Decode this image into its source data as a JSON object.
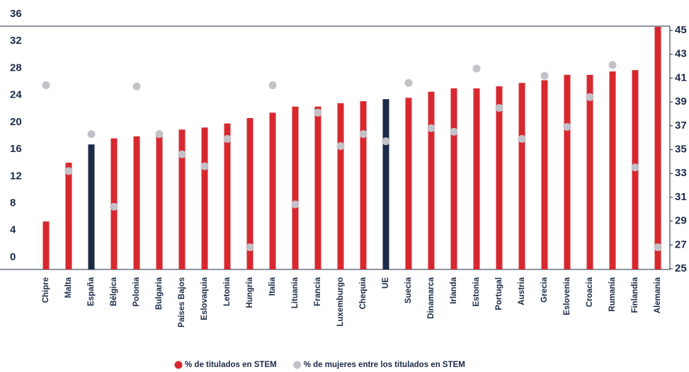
{
  "chart_data": {
    "type": "bar",
    "categories": [
      "Chipre",
      "Malta",
      "España",
      "Bélgica",
      "Polonia",
      "Bulgaria",
      "Países Bajos",
      "Eslovaquia",
      "Letonia",
      "Hungría",
      "Italia",
      "Lituania",
      "Francia",
      "Luxemburgo",
      "Chequia",
      "UE",
      "Suecia",
      "Dinamarca",
      "Irlanda",
      "Estonia",
      "Portugal",
      "Austria",
      "Grecia",
      "Eslovenia",
      "Croacia",
      "Rumanía",
      "Finlandia",
      "Alemania"
    ],
    "series": [
      {
        "name": "% de titulados en STEM",
        "type": "bar",
        "color": "#d7282f",
        "colors": [
          "#d7282f",
          "#d7282f",
          "#1b2a47",
          "#d7282f",
          "#d7282f",
          "#d7282f",
          "#d7282f",
          "#d7282f",
          "#d7282f",
          "#d7282f",
          "#d7282f",
          "#d7282f",
          "#d7282f",
          "#d7282f",
          "#d7282f",
          "#1b2a47",
          "#d7282f",
          "#d7282f",
          "#d7282f",
          "#d7282f",
          "#d7282f",
          "#d7282f",
          "#d7282f",
          "#d7282f",
          "#d7282f",
          "#d7282f",
          "#d7282f",
          "#d7282f"
        ],
        "values": [
          7.1,
          15.8,
          18.5,
          19.4,
          19.7,
          20.4,
          20.7,
          21.0,
          21.6,
          22.4,
          23.2,
          24.1,
          24.1,
          24.6,
          24.9,
          25.2,
          25.4,
          26.3,
          26.8,
          26.8,
          27.1,
          27.6,
          28.0,
          28.8,
          28.8,
          29.3,
          29.5,
          35.9
        ]
      },
      {
        "name": "% de mujeres entre los titulados en STEM",
        "type": "scatter",
        "axis": "y2",
        "color": "#c2c2c8",
        "values": [
          40.4,
          33.2,
          36.3,
          30.2,
          40.3,
          36.3,
          34.6,
          33.6,
          35.9,
          26.8,
          40.4,
          30.4,
          38.1,
          35.3,
          36.3,
          35.7,
          40.6,
          36.8,
          36.5,
          41.8,
          38.5,
          35.9,
          41.2,
          36.9,
          39.4,
          42.1,
          33.5,
          26.8
        ]
      }
    ],
    "ylim": [
      0,
      36
    ],
    "yticks": [
      0,
      4,
      8,
      12,
      16,
      20,
      24,
      28,
      32,
      36
    ],
    "y2lim": [
      24.94,
      45.36
    ],
    "y2ticks": [
      25,
      27,
      29,
      31,
      33,
      35,
      37,
      39,
      41,
      43,
      45
    ],
    "legend": "bottom"
  }
}
